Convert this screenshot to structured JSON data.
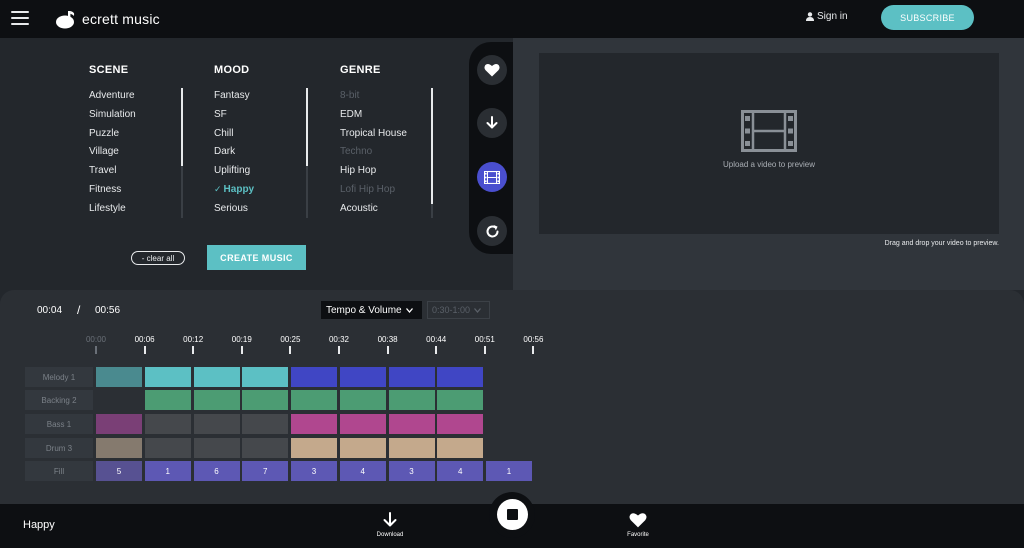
{
  "header": {
    "brand": "ecrett music",
    "signin_label": "Sign in",
    "subscribe_label": "SUBSCRIBE"
  },
  "filters": {
    "scene": {
      "title": "SCENE",
      "items": [
        {
          "label": "Adventure",
          "state": "normal"
        },
        {
          "label": "Simulation",
          "state": "normal"
        },
        {
          "label": "Puzzle",
          "state": "normal"
        },
        {
          "label": "Village",
          "state": "normal"
        },
        {
          "label": "Travel",
          "state": "normal"
        },
        {
          "label": "Fitness",
          "state": "normal"
        },
        {
          "label": "Lifestyle",
          "state": "normal"
        }
      ]
    },
    "mood": {
      "title": "MOOD",
      "items": [
        {
          "label": "Fantasy",
          "state": "normal"
        },
        {
          "label": "SF",
          "state": "normal"
        },
        {
          "label": "Chill",
          "state": "normal"
        },
        {
          "label": "Dark",
          "state": "normal"
        },
        {
          "label": "Uplifting",
          "state": "normal"
        },
        {
          "label": "Happy",
          "state": "selected"
        },
        {
          "label": "Serious",
          "state": "normal"
        }
      ]
    },
    "genre": {
      "title": "GENRE",
      "items": [
        {
          "label": "8-bit",
          "state": "disabled"
        },
        {
          "label": "EDM",
          "state": "normal"
        },
        {
          "label": "Tropical House",
          "state": "normal"
        },
        {
          "label": "Techno",
          "state": "disabled"
        },
        {
          "label": "Hip Hop",
          "state": "normal"
        },
        {
          "label": "Lofi Hip Hop",
          "state": "disabled"
        },
        {
          "label": "Acoustic",
          "state": "normal"
        }
      ]
    },
    "clear_all_label": "- clear all",
    "create_music_label": "CREATE MUSIC"
  },
  "preview": {
    "upload_text": "Upload a video to preview",
    "drag_hint": "Drag and drop your video to preview."
  },
  "player": {
    "current_time": "00:04",
    "separator": "/",
    "total_time": "00:56",
    "mode_select": "Tempo & Volume",
    "range_select": "0:30-1:00",
    "track_title": "Happy",
    "download_label": "Download",
    "favorite_label": "Favorite"
  },
  "timeline": {
    "ticks": [
      {
        "label": "00:00",
        "dim": true
      },
      {
        "label": "00:06",
        "dim": false
      },
      {
        "label": "00:12",
        "dim": false
      },
      {
        "label": "00:19",
        "dim": false
      },
      {
        "label": "00:25",
        "dim": false
      },
      {
        "label": "00:32",
        "dim": false
      },
      {
        "label": "00:38",
        "dim": false
      },
      {
        "label": "00:44",
        "dim": false
      },
      {
        "label": "00:51",
        "dim": false
      },
      {
        "label": "00:56",
        "dim": false
      }
    ],
    "rows": [
      {
        "label": "Melody 1",
        "cells": [
          "#4a8a8f",
          "#5cc0c4",
          "#5cc0c4",
          "#5cc0c4",
          "#4046c4",
          "#4046c4",
          "#4046c4",
          "#4046c4"
        ]
      },
      {
        "label": "Backing 2",
        "cells": [
          "#2b2f34",
          "#4c9c73",
          "#4c9c73",
          "#4c9c73",
          "#4c9c73",
          "#4c9c73",
          "#4c9c73",
          "#4c9c73"
        ]
      },
      {
        "label": "Bass 1",
        "cells": [
          "#7a3f76",
          "#45484c",
          "#45484c",
          "#45484c",
          "#b0478f",
          "#b0478f",
          "#b0478f",
          "#b0478f"
        ]
      },
      {
        "label": "Drum 3",
        "cells": [
          "#857a6e",
          "#45484c",
          "#45484c",
          "#45484c",
          "#c4a98c",
          "#c4a98c",
          "#c4a98c",
          "#c4a98c"
        ]
      }
    ],
    "fill_row": {
      "label": "Fill",
      "values": [
        "5",
        "1",
        "6",
        "7",
        "3",
        "4",
        "3",
        "4",
        "1"
      ],
      "colors": [
        "#575192",
        "#5d58b4",
        "#5d58b4",
        "#5d58b4",
        "#5d58b4",
        "#5d58b4",
        "#5d58b4",
        "#5d58b4",
        "#5d58b4"
      ]
    }
  },
  "icons": {
    "menu": "hamburger-icon",
    "logo": "note-logo-icon",
    "user": "user-icon",
    "heart": "heart-icon",
    "download": "download-icon",
    "film": "film-icon",
    "refresh": "refresh-icon",
    "stop": "stop-icon"
  },
  "colors": {
    "accent": "#5cc0c4",
    "active_rail": "#4a4fcf"
  }
}
